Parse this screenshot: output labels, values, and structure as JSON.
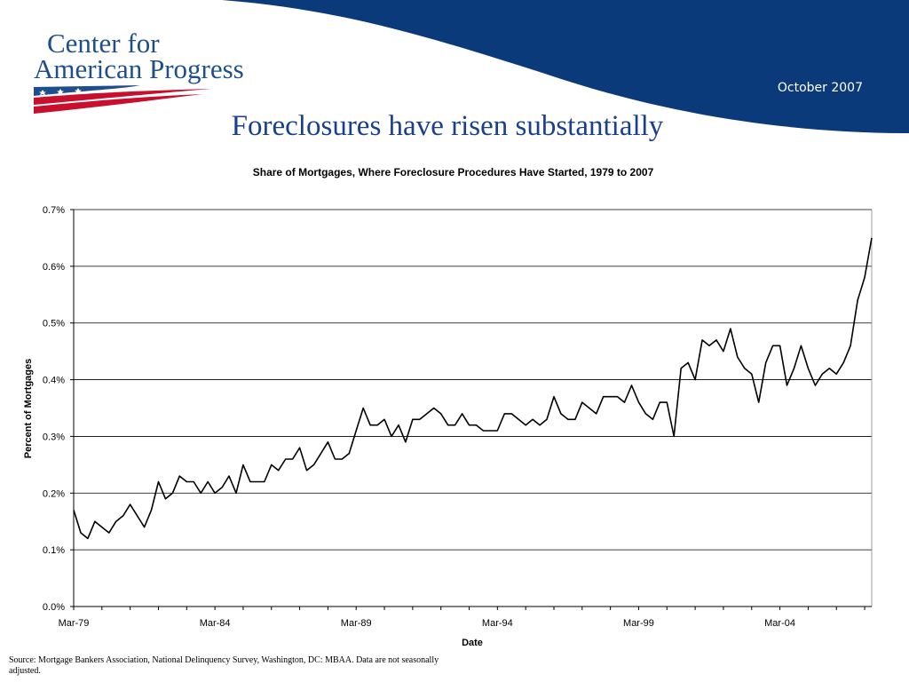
{
  "header": {
    "logo_line1": "Center for",
    "logo_line2": "American Progress",
    "date": "October 2007"
  },
  "slide": {
    "title": "Foreclosures have risen substantially",
    "source": "Source: Mortgage Bankers Association, National Delinquency Survey, Washington, DC: MBAA. Data are not seasonally adjusted."
  },
  "colors": {
    "banner": "#0b3a7a",
    "title": "#1a3f8c",
    "logo_text": "#1f4e8c",
    "flag_red": "#c8102e",
    "line": "#000000"
  },
  "chart_data": {
    "type": "line",
    "title": "Share of Mortgages, Where Foreclosure Procedures Have Started, 1979 to 2007",
    "xlabel": "Date",
    "ylabel": "Percent of Mortgages",
    "ylim": [
      0,
      0.7
    ],
    "y_ticks": [
      "0.0%",
      "0.1%",
      "0.2%",
      "0.3%",
      "0.4%",
      "0.5%",
      "0.6%",
      "0.7%"
    ],
    "x_ticks": [
      "Mar-79",
      "Mar-84",
      "Mar-89",
      "Mar-94",
      "Mar-99",
      "Mar-04"
    ],
    "grid": true,
    "series": [
      {
        "values": [
          0.17,
          0.13,
          0.12,
          0.15,
          0.14,
          0.13,
          0.15,
          0.16,
          0.18,
          0.16,
          0.14,
          0.17,
          0.22,
          0.19,
          0.2,
          0.23,
          0.22,
          0.22,
          0.2,
          0.22,
          0.2,
          0.21,
          0.23,
          0.2,
          0.25,
          0.22,
          0.22,
          0.22,
          0.25,
          0.24,
          0.26,
          0.26,
          0.28,
          0.24,
          0.25,
          0.27,
          0.29,
          0.26,
          0.26,
          0.27,
          0.31,
          0.35,
          0.32,
          0.32,
          0.33,
          0.3,
          0.32,
          0.29,
          0.33,
          0.33,
          0.34,
          0.35,
          0.34,
          0.32,
          0.32,
          0.34,
          0.32,
          0.32,
          0.31,
          0.31,
          0.31,
          0.34,
          0.34,
          0.33,
          0.32,
          0.33,
          0.32,
          0.33,
          0.37,
          0.34,
          0.33,
          0.33,
          0.36,
          0.35,
          0.34,
          0.37,
          0.37,
          0.37,
          0.36,
          0.39,
          0.36,
          0.34,
          0.33,
          0.36,
          0.36,
          0.3,
          0.42,
          0.43,
          0.4,
          0.47,
          0.46,
          0.47,
          0.45,
          0.49,
          0.44,
          0.42,
          0.41,
          0.36,
          0.43,
          0.46,
          0.46,
          0.39,
          0.42,
          0.46,
          0.42,
          0.39,
          0.41,
          0.42,
          0.41,
          0.43,
          0.46,
          0.54,
          0.58,
          0.65
        ]
      }
    ]
  }
}
